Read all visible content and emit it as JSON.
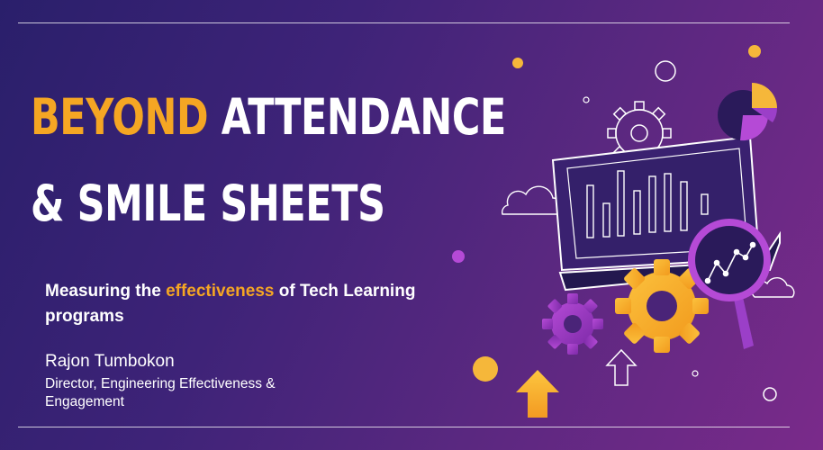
{
  "slide": {
    "title_accent": "BEYOND",
    "title_rest": " ATTENDANCE",
    "title_line2": "& SMILE SHEETS",
    "subtitle_pre": "Measuring the ",
    "subtitle_accent": "effectiveness",
    "subtitle_post": " of Tech Learning programs",
    "author": "Rajon Tumbokon",
    "role": "Director, Engineering Effectiveness & Engagement"
  },
  "colors": {
    "accent": "#f5a623",
    "text": "#ffffff",
    "bg_start": "#2a1f6b",
    "bg_end": "#7a2a8a",
    "purple_accent": "#9b3fc8"
  },
  "illustration": {
    "icons": [
      "laptop-icon",
      "bar-chart-icon",
      "magnifier-icon",
      "line-chart-icon",
      "pie-chart-icon",
      "gear-icon",
      "cloud-icon",
      "arrow-up-icon"
    ]
  }
}
